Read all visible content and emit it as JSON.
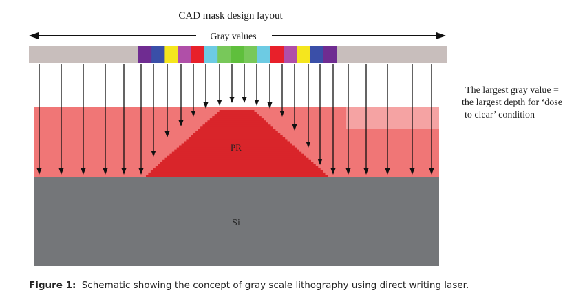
{
  "diagram": {
    "title": "CAD mask design layout",
    "gray_values_label": "Gray values",
    "note_lines": [
      "The largest gray value =",
      "the largest depth for ‘dose",
      "to clear’ condition"
    ],
    "layer_pr": "PR",
    "layer_si": "Si",
    "mask_colors": [
      "#6f2c91",
      "#3a4fa8",
      "#f5e61e",
      "#b04fa8",
      "#e8202a",
      "#6dcbe3",
      "#78c85a",
      "#5fbf3c",
      "#78c85a",
      "#6dcbe3",
      "#e8202a",
      "#b04fa8",
      "#f5e61e",
      "#3a4fa8",
      "#6f2c91"
    ],
    "colors": {
      "mask_gray": "#c8bebc",
      "resist_light": "#f07676",
      "resist_dark": "#d9252a",
      "resist_highlight": "#f5a3a3",
      "silicon": "#747679"
    }
  },
  "caption": {
    "label": "Figure 1:",
    "text": "Schematic showing the concept of gray scale lithography using direct writing laser."
  }
}
